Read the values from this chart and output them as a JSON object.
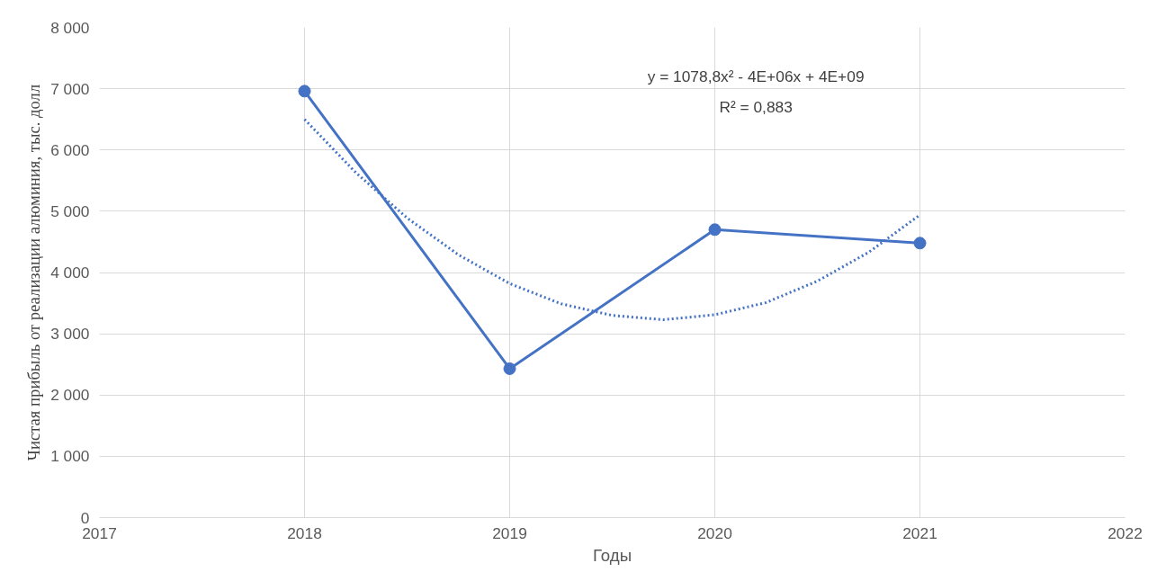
{
  "chart_data": {
    "type": "line",
    "xlabel": "Годы",
    "ylabel": "Чистая прибыль от реализации алюминия, тыс. долл",
    "xlim": [
      2017,
      2022
    ],
    "xticks": [
      2017,
      2018,
      2019,
      2020,
      2021,
      2022
    ],
    "ylim": [
      0,
      8000
    ],
    "yticks": [
      {
        "value": 0,
        "label": "0"
      },
      {
        "value": 1000,
        "label": "1 000"
      },
      {
        "value": 2000,
        "label": "2 000"
      },
      {
        "value": 3000,
        "label": "3 000"
      },
      {
        "value": 4000,
        "label": "4 000"
      },
      {
        "value": 5000,
        "label": "5 000"
      },
      {
        "value": 6000,
        "label": "6 000"
      },
      {
        "value": 7000,
        "label": "7 000"
      },
      {
        "value": 8000,
        "label": "8 000"
      }
    ],
    "grid": true,
    "series": [
      {
        "color": "#4472c4",
        "x": [
          2018,
          2019,
          2020,
          2021
        ],
        "values": [
          6960,
          2430,
          4700,
          4480
        ],
        "marker": "circle",
        "line_style": "solid"
      },
      {
        "type": "line",
        "color": "#4472c4",
        "x": [
          2018,
          2018.25,
          2018.5,
          2018.75,
          2019,
          2019.25,
          2019.5,
          2019.75,
          2020,
          2020.25,
          2020.5,
          2020.75,
          2021
        ],
        "values": [
          6500,
          5630,
          4890,
          4290,
          3820,
          3490,
          3300,
          3230,
          3310,
          3510,
          3860,
          4330,
          4940
        ],
        "marker": "none",
        "line_style": "dotted"
      }
    ],
    "annotations": [
      "y = 1078,8x² - 4E+06x + 4E+09",
      "R² = 0,883"
    ]
  }
}
